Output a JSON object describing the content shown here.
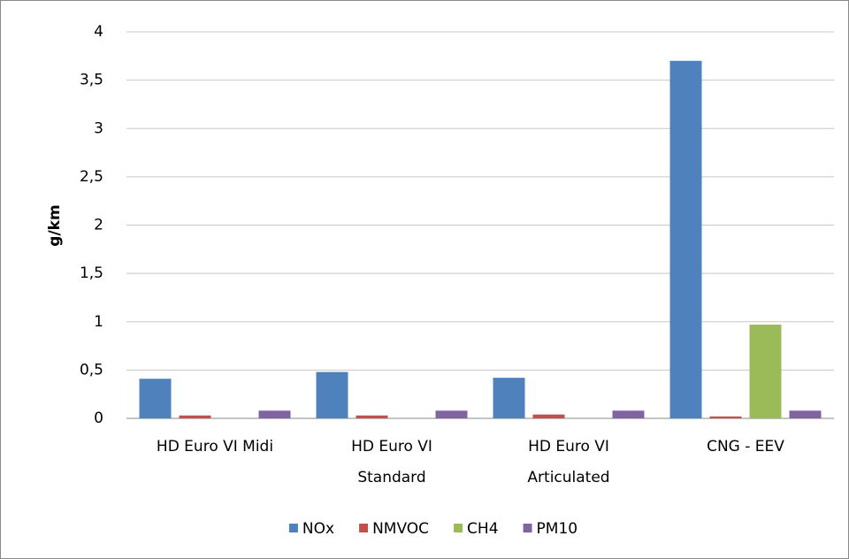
{
  "chart_data": {
    "type": "bar",
    "y_label": "g/km",
    "categories": [
      "HD Euro VI Midi",
      "HD Euro VI Standard",
      "HD Euro VI Articulated",
      "CNG - EEV"
    ],
    "series": [
      {
        "name": "NOx",
        "color": "#4f81bd",
        "values": [
          0.41,
          0.48,
          0.42,
          3.7
        ]
      },
      {
        "name": "NMVOC",
        "color": "#c0504d",
        "values": [
          0.03,
          0.03,
          0.04,
          0.02
        ]
      },
      {
        "name": "CH4",
        "color": "#9bbb59",
        "values": [
          0,
          0,
          0,
          0.97
        ]
      },
      {
        "name": "PM10",
        "color": "#8064a2",
        "values": [
          0.08,
          0.08,
          0.08,
          0.08
        ]
      }
    ],
    "ylim": [
      0,
      4
    ],
    "yticks": [
      0,
      {
        "value": 0.5,
        "label": "0,5"
      },
      1,
      {
        "value": 1.5,
        "label": "1,5"
      },
      2,
      {
        "value": 2.5,
        "label": "2,5"
      },
      3,
      {
        "value": 3.5,
        "label": "3,5"
      },
      4
    ],
    "grid": true,
    "legend": "bottom"
  }
}
